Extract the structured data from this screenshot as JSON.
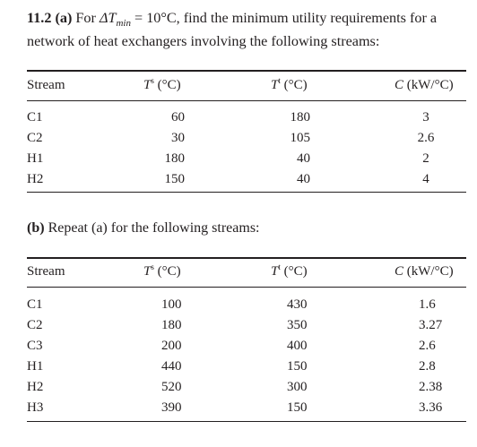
{
  "problem": {
    "number": "11.2",
    "part_a_label": "(a)",
    "line1_pre": "For ",
    "delta": "ΔT",
    "delta_sub": "min",
    "line1_post": " = 10°C, find the minimum utility requirements for a",
    "line2": "network of heat exchangers involving the following streams:"
  },
  "table_a": {
    "headers": [
      "Stream",
      "T",
      "s",
      " (°C)",
      "T",
      "t",
      " (°C)",
      "C",
      " (kW/°C)"
    ],
    "rows": [
      {
        "stream": "C1",
        "ts": "60",
        "tt": "180",
        "c": "3"
      },
      {
        "stream": "C2",
        "ts": "30",
        "tt": "105",
        "c": "2.6"
      },
      {
        "stream": "H1",
        "ts": "180",
        "tt": "40",
        "c": "2"
      },
      {
        "stream": "H2",
        "ts": "150",
        "tt": "40",
        "c": "4"
      }
    ]
  },
  "part_b": {
    "label": "(b)",
    "text": " Repeat (a) for the following streams:"
  },
  "table_b": {
    "headers": [
      "Stream",
      "T",
      "s",
      " (°C)",
      "T",
      "t",
      " (°C)",
      "C",
      " (kW/°C)"
    ],
    "rows": [
      {
        "stream": "C1",
        "ts": "100",
        "tt": "430",
        "c": "1.6"
      },
      {
        "stream": "C2",
        "ts": "180",
        "tt": "350",
        "c": "3.27"
      },
      {
        "stream": "C3",
        "ts": "200",
        "tt": "400",
        "c": "2.6"
      },
      {
        "stream": "H1",
        "ts": "440",
        "tt": "150",
        "c": "2.8"
      },
      {
        "stream": "H2",
        "ts": "520",
        "tt": "300",
        "c": "2.38"
      },
      {
        "stream": "H3",
        "ts": "390",
        "tt": "150",
        "c": "3.36"
      }
    ]
  }
}
